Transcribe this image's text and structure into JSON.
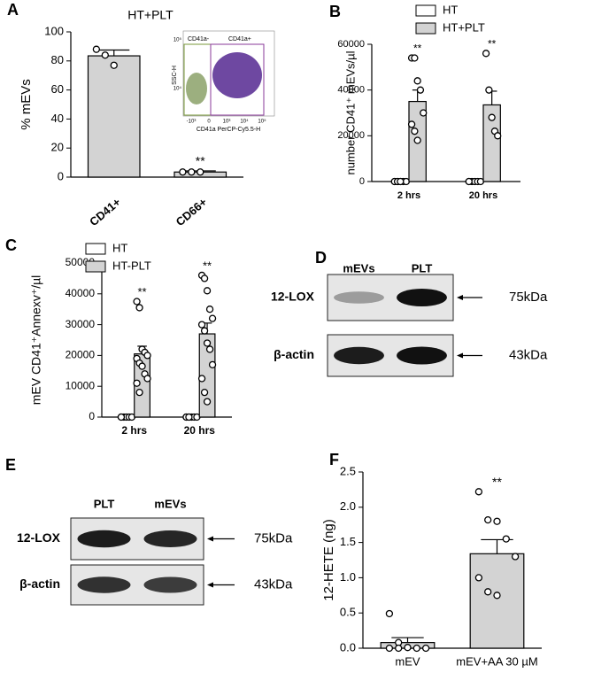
{
  "chart_data": [
    {
      "type": "bar",
      "panel": "A",
      "title": "HT+PLT",
      "ylabel": "% mEVs",
      "categories": [
        "CD41+",
        "CD66+"
      ],
      "values": [
        83.5,
        3.5
      ],
      "errors": [
        4,
        0.8
      ],
      "points": [
        [
          88,
          84,
          77
        ],
        [
          3.5,
          3.5,
          3.5
        ]
      ],
      "significance": [
        null,
        "**"
      ],
      "color": "#d3d3d3",
      "ylim": [
        0,
        100
      ],
      "yticks": [
        0,
        20,
        40,
        60,
        80,
        100
      ],
      "inset": {
        "gates": [
          "CD41a-",
          "CD41a+"
        ],
        "xlabel": "CD41a PerCP-Cy5.5-H",
        "ylabel": "SSC-H",
        "xticks": [
          "-10³",
          "0",
          "10³",
          "10⁴",
          "10⁵"
        ],
        "yticks": [
          "10⁴",
          "10⁵"
        ]
      }
    },
    {
      "type": "bar",
      "panel": "B",
      "ylabel": "number CD41⁺ mEVs/µl",
      "categories": [
        "2 hrs",
        "20 hrs"
      ],
      "series": [
        {
          "name": "HT",
          "color": "#ffffff",
          "values": [
            0,
            0
          ],
          "errors": [
            0,
            0
          ],
          "points": [
            [
              0,
              0,
              0,
              0,
              0,
              0,
              0,
              0
            ],
            [
              0,
              0,
              0,
              0,
              0,
              0
            ]
          ]
        },
        {
          "name": "HT+PLT",
          "color": "#d3d3d3",
          "values": [
            35000,
            33500
          ],
          "errors": [
            5000,
            6000
          ],
          "points": [
            [
              54000,
              54000,
              44000,
              40000,
              30000,
              25000,
              22000,
              18000
            ],
            [
              56000,
              40000,
              28000,
              22000,
              20000
            ]
          ],
          "significance": [
            "**",
            "**"
          ]
        }
      ],
      "ylim": [
        0,
        60000
      ],
      "yticks": [
        0,
        20000,
        40000,
        60000
      ],
      "legend": "top"
    },
    {
      "type": "bar",
      "panel": "C",
      "ylabel": "mEV CD41⁺Annexv⁺/µl",
      "categories": [
        "2 hrs",
        "20 hrs"
      ],
      "series": [
        {
          "name": "HT",
          "color": "#ffffff",
          "values": [
            0,
            0
          ],
          "errors": [
            0,
            0
          ],
          "points": [
            [
              0,
              0,
              0,
              0,
              0,
              0
            ],
            [
              0,
              0,
              0,
              0,
              0,
              0,
              0
            ]
          ]
        },
        {
          "name": "HT-PLT",
          "color": "#d3d3d3",
          "values": [
            20500,
            27000
          ],
          "errors": [
            2500,
            3500
          ],
          "points": [
            [
              37500,
              35500,
              22000,
              21000,
              20000,
              19000,
              17500,
              16500,
              14000,
              12500,
              11000,
              8000
            ],
            [
              46000,
              45000,
              41000,
              35000,
              32000,
              30000,
              28000,
              24000,
              22000,
              17000,
              12500,
              8000,
              5000
            ]
          ],
          "significance": [
            "**",
            "**"
          ]
        }
      ],
      "ylim": [
        0,
        50000
      ],
      "yticks": [
        0,
        10000,
        20000,
        30000,
        40000,
        50000
      ],
      "legend": "top-left"
    },
    {
      "type": "blot",
      "panel": "D",
      "lanes": [
        "mEVs",
        "PLT"
      ],
      "rows": [
        "12-LOX",
        "β-actin"
      ],
      "sizes": [
        "75kDa",
        "43kDa"
      ]
    },
    {
      "type": "blot",
      "panel": "E",
      "lanes": [
        "PLT",
        "mEVs"
      ],
      "rows": [
        "12-LOX",
        "β-actin"
      ],
      "sizes": [
        "75kDa",
        "43kDa"
      ]
    },
    {
      "type": "bar",
      "panel": "F",
      "ylabel": "12-HETE (ng)",
      "categories": [
        "mEV",
        "mEV+AA 30 µM"
      ],
      "values": [
        0.08,
        1.34
      ],
      "errors": [
        0.07,
        0.2
      ],
      "points": [
        [
          0.49,
          0.08,
          0.01,
          0,
          0,
          0,
          0
        ],
        [
          2.22,
          1.82,
          1.8,
          1.55,
          1.3,
          1.0,
          0.8,
          0.75
        ]
      ],
      "significance": [
        null,
        "**"
      ],
      "color": "#d3d3d3",
      "ylim": [
        0,
        2.5
      ],
      "yticks": [
        {
          "value": 0,
          "label": "0.0"
        },
        0.5,
        {
          "value": 1,
          "label": "1.0"
        },
        1.5,
        {
          "value": 2,
          "label": "2.0"
        },
        2.5
      ]
    }
  ]
}
